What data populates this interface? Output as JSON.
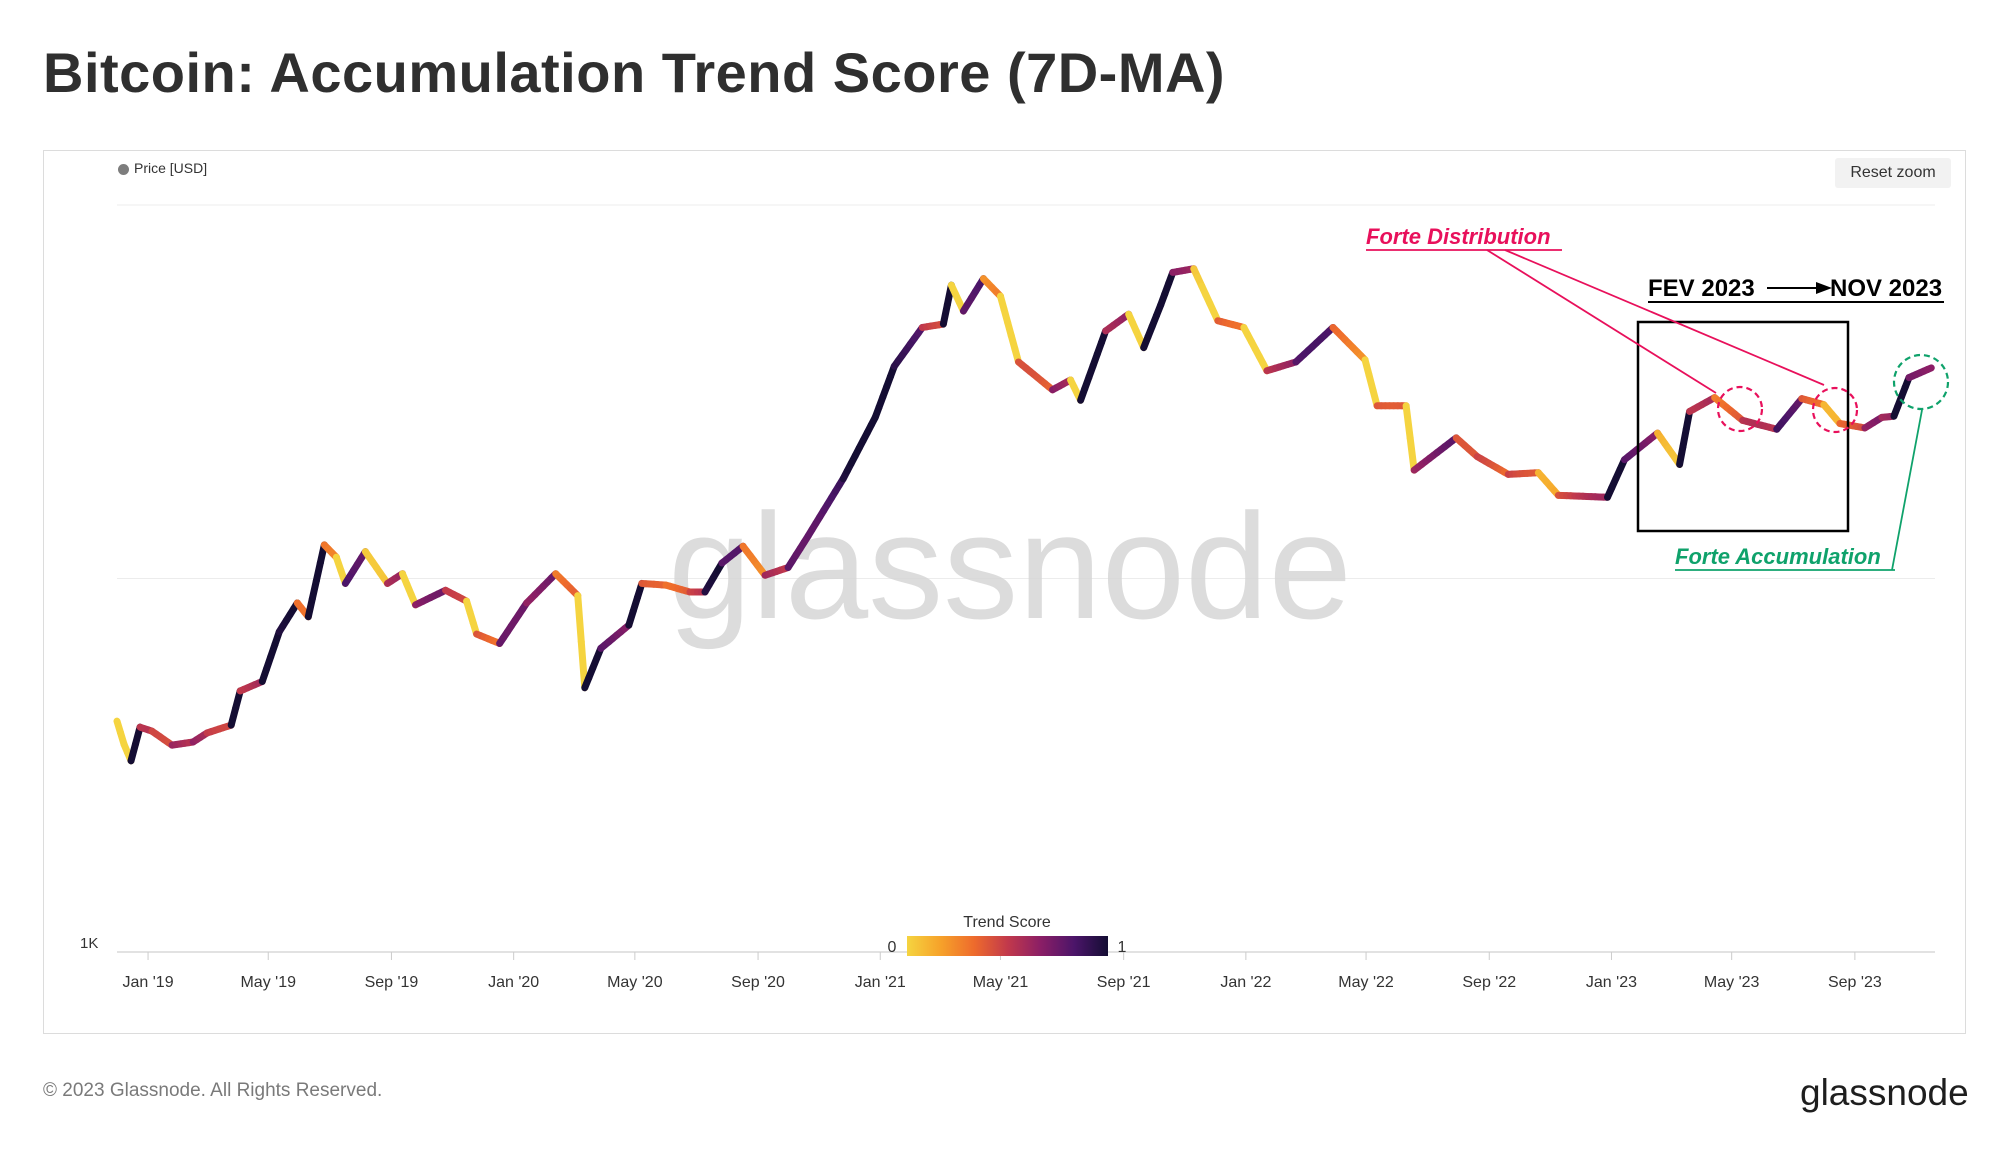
{
  "page": {
    "title": "Bitcoin: Accumulation Trend Score (7D-MA)",
    "copyright": "© 2023 Glassnode. All Rights Reserved.",
    "logo_text": "glassnode",
    "watermark": "glassnode"
  },
  "controls": {
    "reset_zoom_label": "Reset zoom"
  },
  "chart_data": {
    "type": "scatter",
    "title": "Bitcoin: Accumulation Trend Score (7D-MA)",
    "series": [
      {
        "name": "Price [USD]"
      }
    ],
    "y_scale": "log",
    "y_tick_labels": [
      "1K"
    ],
    "x_tick_labels": [
      "Jan '19",
      "May '19",
      "Sep '19",
      "Jan '20",
      "May '20",
      "Sep '20",
      "Jan '21",
      "May '21",
      "Sep '21",
      "Jan '22",
      "May '22",
      "Sep '22",
      "Jan '23",
      "May '23",
      "Sep '23"
    ],
    "x_range": [
      "2018-12-01",
      "2023-11-20"
    ],
    "y_range": [
      1000,
      100000
    ],
    "price_points": [
      [
        "2018-12-01",
        4150
      ],
      [
        "2018-12-08",
        3600
      ],
      [
        "2018-12-15",
        3250
      ],
      [
        "2018-12-24",
        4000
      ],
      [
        "2019-01-05",
        3900
      ],
      [
        "2019-01-25",
        3580
      ],
      [
        "2019-02-15",
        3650
      ],
      [
        "2019-03-01",
        3860
      ],
      [
        "2019-03-25",
        4050
      ],
      [
        "2019-04-03",
        5000
      ],
      [
        "2019-04-25",
        5300
      ],
      [
        "2019-05-12",
        7200
      ],
      [
        "2019-05-30",
        8600
      ],
      [
        "2019-06-10",
        7900
      ],
      [
        "2019-06-26",
        12300
      ],
      [
        "2019-07-08",
        11400
      ],
      [
        "2019-07-17",
        9700
      ],
      [
        "2019-08-06",
        11800
      ],
      [
        "2019-08-28",
        9700
      ],
      [
        "2019-09-12",
        10300
      ],
      [
        "2019-09-25",
        8500
      ],
      [
        "2019-10-25",
        9300
      ],
      [
        "2019-11-15",
        8700
      ],
      [
        "2019-11-25",
        7100
      ],
      [
        "2019-12-18",
        6700
      ],
      [
        "2020-01-14",
        8600
      ],
      [
        "2020-02-12",
        10300
      ],
      [
        "2020-03-05",
        9000
      ],
      [
        "2020-03-12",
        5100
      ],
      [
        "2020-03-28",
        6500
      ],
      [
        "2020-04-25",
        7500
      ],
      [
        "2020-05-08",
        9700
      ],
      [
        "2020-06-01",
        9600
      ],
      [
        "2020-06-25",
        9200
      ],
      [
        "2020-07-10",
        9200
      ],
      [
        "2020-07-27",
        11000
      ],
      [
        "2020-08-17",
        12200
      ],
      [
        "2020-09-08",
        10200
      ],
      [
        "2020-10-01",
        10700
      ],
      [
        "2020-10-21",
        13000
      ],
      [
        "2020-11-25",
        18500
      ],
      [
        "2020-12-27",
        27000
      ],
      [
        "2021-01-15",
        37000
      ],
      [
        "2021-02-12",
        47000
      ],
      [
        "2021-03-05",
        48000
      ],
      [
        "2021-03-13",
        61000
      ],
      [
        "2021-03-25",
        52000
      ],
      [
        "2021-04-14",
        63500
      ],
      [
        "2021-05-01",
        57000
      ],
      [
        "2021-05-19",
        38000
      ],
      [
        "2021-06-22",
        32000
      ],
      [
        "2021-07-10",
        34000
      ],
      [
        "2021-07-20",
        30000
      ],
      [
        "2021-08-14",
        46000
      ],
      [
        "2021-09-06",
        51000
      ],
      [
        "2021-09-21",
        41500
      ],
      [
        "2021-10-08",
        54000
      ],
      [
        "2021-10-20",
        66000
      ],
      [
        "2021-11-10",
        67500
      ],
      [
        "2021-12-04",
        49000
      ],
      [
        "2021-12-30",
        47000
      ],
      [
        "2022-01-22",
        36000
      ],
      [
        "2022-02-20",
        38000
      ],
      [
        "2022-03-29",
        47000
      ],
      [
        "2022-04-30",
        38500
      ],
      [
        "2022-05-12",
        29000
      ],
      [
        "2022-06-10",
        29000
      ],
      [
        "2022-06-18",
        19500
      ],
      [
        "2022-07-30",
        23800
      ],
      [
        "2022-08-20",
        21200
      ],
      [
        "2022-09-20",
        19000
      ],
      [
        "2022-10-20",
        19200
      ],
      [
        "2022-11-09",
        16700
      ],
      [
        "2022-12-28",
        16500
      ],
      [
        "2023-01-14",
        20800
      ],
      [
        "2023-02-16",
        24500
      ],
      [
        "2023-03-10",
        20200
      ],
      [
        "2023-03-20",
        28000
      ],
      [
        "2023-04-14",
        30500
      ],
      [
        "2023-05-12",
        26500
      ],
      [
        "2023-06-15",
        25100
      ],
      [
        "2023-07-10",
        30300
      ],
      [
        "2023-08-01",
        29200
      ],
      [
        "2023-08-17",
        26000
      ],
      [
        "2023-09-11",
        25300
      ],
      [
        "2023-09-28",
        27000
      ],
      [
        "2023-10-10",
        27200
      ],
      [
        "2023-10-25",
        34500
      ],
      [
        "2023-11-20",
        37000
      ]
    ],
    "trend_score_legend": {
      "title": "Trend Score",
      "min_label": "0",
      "max_label": "1",
      "colors": [
        "#f5d440",
        "#f6a22a",
        "#ee6b2c",
        "#c2394b",
        "#8a1e66",
        "#4b1569",
        "#140d33"
      ]
    },
    "annotations": {
      "distribution_label": "Forte Distribution",
      "accumulation_label": "Forte Accumulation",
      "period_start": "FEV 2023",
      "period_end": "NOV 2023",
      "distribution_color": "#e8105b",
      "accumulation_color": "#0fa26b"
    }
  }
}
